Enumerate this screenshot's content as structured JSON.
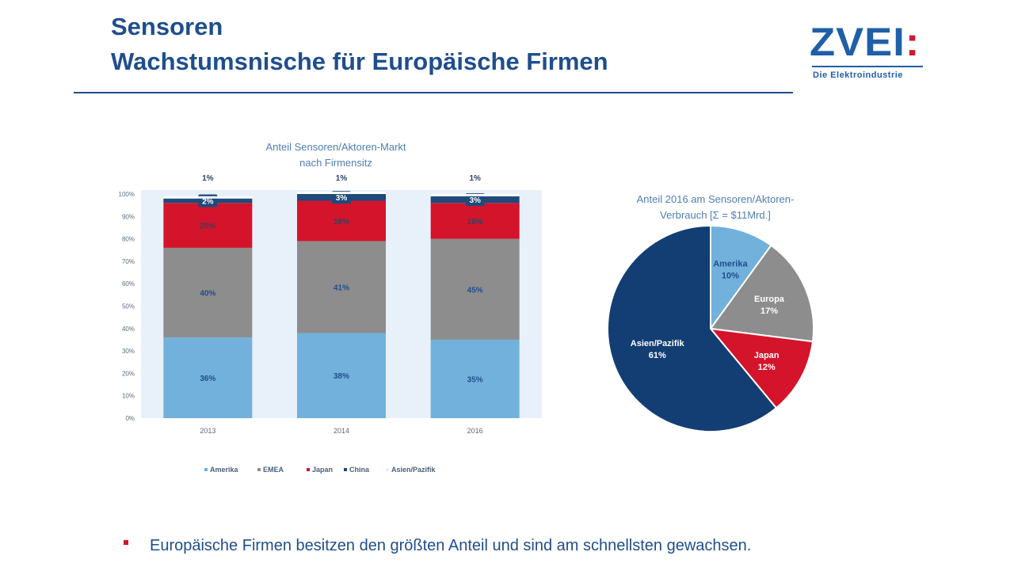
{
  "header": {
    "title_line1": "Sensoren",
    "title_line2": "Wachstumsnische für Europäische Firmen"
  },
  "logo": {
    "main": "ZVEI",
    "colon": ":",
    "subtitle": "Die Elektroindustrie"
  },
  "colors": {
    "Amerika": "#72b1db",
    "EMEA": "#8d8d8d",
    "Japan": "#d4142b",
    "China": "#1f4a7c",
    "Asien_Pazifik": "#ffffff",
    "Asien_Pazifik_pie": "#123e74",
    "title": "#1f4e8c"
  },
  "chart_data": [
    {
      "type": "bar",
      "stacked": true,
      "percent": true,
      "title": "Anteil Sensoren/Aktoren-Markt nach Firmensitz",
      "title_lines": [
        "Anteil Sensoren/Aktoren-Markt",
        "nach Firmensitz"
      ],
      "categories": [
        "2013",
        "2014",
        "2016"
      ],
      "ylim": [
        0,
        100
      ],
      "yticks": [
        "0%",
        "10%",
        "20%",
        "30%",
        "40%",
        "50%",
        "60%",
        "70%",
        "80%",
        "90%",
        "100%"
      ],
      "series": [
        {
          "name": "Amerika",
          "values": [
            36,
            38,
            35
          ],
          "labels": [
            "36%",
            "38%",
            "35%"
          ]
        },
        {
          "name": "EMEA",
          "values": [
            40,
            41,
            45
          ],
          "labels": [
            "40%",
            "41%",
            "45%"
          ]
        },
        {
          "name": "Japan",
          "values": [
            20,
            18,
            16
          ],
          "labels": [
            "20%",
            "18%",
            "16%"
          ]
        },
        {
          "name": "China",
          "values": [
            2,
            3,
            3
          ],
          "labels": [
            "2%",
            "3%",
            "3%"
          ]
        },
        {
          "name": "Asien/Pazifik",
          "values": [
            1,
            1,
            1
          ],
          "labels": [
            "1%",
            "1%",
            "1%"
          ]
        }
      ],
      "legend": [
        "Amerika",
        "EMEA",
        "Japan",
        "China",
        "Asien/Pazifik"
      ],
      "legend_position": "bottom"
    },
    {
      "type": "pie",
      "title": "Anteil 2016 am Sensoren/Aktoren-Verbrauch [Σ = $11Mrd.]",
      "title_lines": [
        "Anteil 2016 am Sensoren/Aktoren-",
        "Verbrauch [Σ = $11Mrd.]"
      ],
      "slices": [
        {
          "label": "Amerika",
          "value": 10,
          "pct": "10%"
        },
        {
          "label": "Europa",
          "value": 17,
          "pct": "17%"
        },
        {
          "label": "Japan",
          "value": 12,
          "pct": "12%"
        },
        {
          "label": "Asien/Pazifik",
          "value": 61,
          "pct": "61%"
        }
      ]
    }
  ],
  "bullet": "Europäische Firmen besitzen den größten Anteil und sind am schnellsten gewachsen."
}
